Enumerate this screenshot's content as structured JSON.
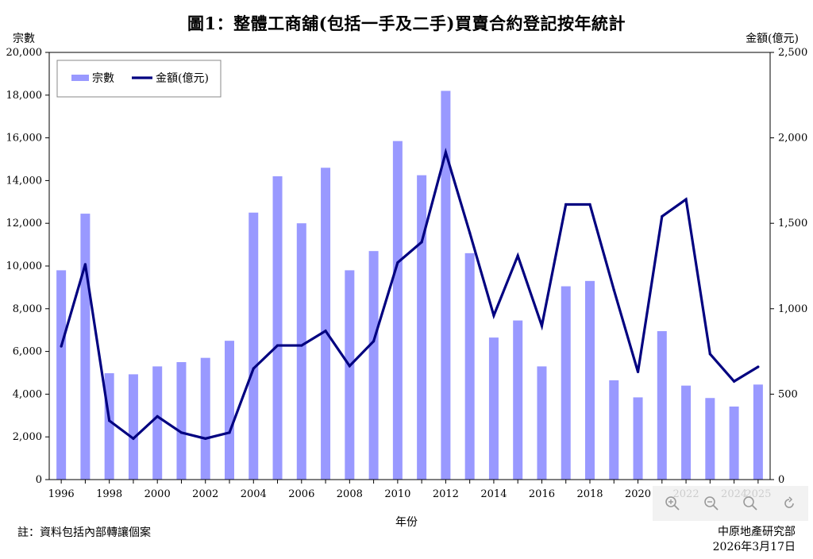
{
  "title": "圖1：整體工商舖(包括一手及二手)買賣合約登記按年統計",
  "y_left_label": "宗數",
  "y_right_label": "金額(億元)",
  "x_axis_label": "年份",
  "footnote": "註：資料包括內部轉讓個案",
  "source": "中原地產研究部",
  "date": "2026年3月17日",
  "colors": {
    "bar": "#9999ff",
    "line": "#000080"
  },
  "toolbar": {
    "icons": [
      "zoom-in-icon",
      "zoom-out-icon",
      "search-icon",
      "reset-icon"
    ]
  },
  "chart_data": {
    "type": "bar+line",
    "categories": [
      "1996",
      "1997",
      "1998",
      "1999",
      "2000",
      "2001",
      "2002",
      "2003",
      "2004",
      "2005",
      "2006",
      "2007",
      "2008",
      "2009",
      "2010",
      "2011",
      "2012",
      "2013",
      "2014",
      "2015",
      "2016",
      "2017",
      "2018",
      "2019",
      "2020",
      "2021",
      "2022",
      "2023",
      "2024",
      "2025"
    ],
    "x_tick_labels": [
      "1996",
      "1998",
      "2000",
      "2002",
      "2004",
      "2006",
      "2008",
      "2010",
      "2012",
      "2014",
      "2016",
      "2018",
      "2020",
      "2022",
      "2024",
      "2025"
    ],
    "series": [
      {
        "name": "宗數",
        "type": "bar",
        "axis": "left",
        "values": [
          9800,
          12450,
          4980,
          4930,
          5300,
          5500,
          5700,
          6500,
          12500,
          14200,
          12000,
          14600,
          9800,
          10700,
          15850,
          14250,
          18200,
          10600,
          6650,
          7450,
          5300,
          9050,
          9300,
          4650,
          3850,
          6950,
          4400,
          3820,
          3420,
          4450
        ]
      },
      {
        "name": "金額(億元)",
        "type": "line",
        "axis": "right",
        "values": [
          780,
          1260,
          345,
          240,
          370,
          275,
          240,
          275,
          650,
          785,
          785,
          870,
          665,
          810,
          1270,
          1390,
          1915,
          1445,
          960,
          1310,
          900,
          1610,
          1610,
          1110,
          630,
          1540,
          1640,
          735,
          575,
          660
        ]
      }
    ],
    "y_left_ticks": [
      "0",
      "2,000",
      "4,000",
      "6,000",
      "8,000",
      "10,000",
      "12,000",
      "14,000",
      "16,000",
      "18,000",
      "20,000"
    ],
    "y_right_ticks": [
      "0",
      "500",
      "1,000",
      "1,500",
      "2,000",
      "2,500"
    ],
    "ylim_left": [
      0,
      20000
    ],
    "ylim_right": [
      0,
      2500
    ],
    "legend": {
      "placement": "top-left",
      "entries": [
        "宗數",
        "金額(億元)"
      ]
    },
    "grid": false
  }
}
